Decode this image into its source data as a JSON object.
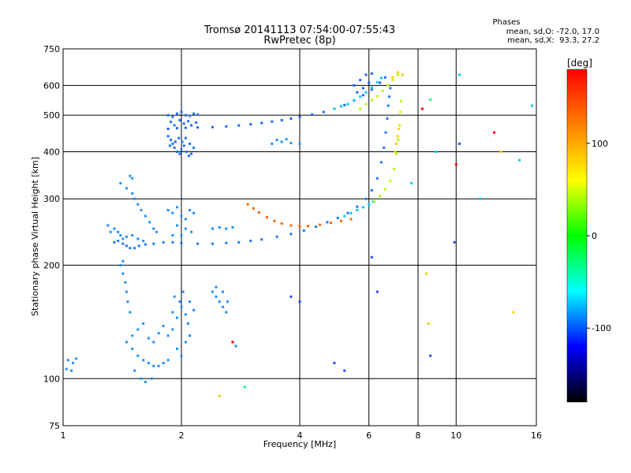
{
  "chart_data": {
    "type": "scatter",
    "title": "Tromsø 20141113 07:54:00-07:55:43",
    "subtitle": "RwPretec (8p)",
    "xlabel": "Frequency [MHz]",
    "ylabel": "Stationary phase Virtual Height [km]",
    "x_scale": "log",
    "y_scale": "log",
    "xlim": [
      1,
      16
    ],
    "ylim": [
      75,
      750
    ],
    "x_ticks": [
      1,
      2,
      4,
      6,
      8,
      10,
      16
    ],
    "y_ticks": [
      75,
      100,
      200,
      300,
      400,
      500,
      600,
      750
    ],
    "grid": true,
    "phases_box": {
      "title": "Phases",
      "line_o": "mean, sd,O: -72.0, 17.0",
      "line_x": "mean, sd,X:  93.3, 27.2"
    },
    "colorbar": {
      "unit": "[deg]",
      "range": [
        -180,
        180
      ],
      "ticks": [
        100,
        0,
        -100
      ],
      "colors": [
        "#ff0000",
        "#ff8000",
        "#ffff00",
        "#00ff00",
        "#00ffff",
        "#0000ff",
        "#000000"
      ]
    },
    "series": [
      {
        "color": "#1e90ff",
        "points": [
          [
            1.03,
            112
          ],
          [
            1.06,
            110
          ],
          [
            1.08,
            113
          ],
          [
            1.02,
            106
          ],
          [
            1.05,
            105
          ]
        ]
      },
      {
        "color": "#1e78ff",
        "points": [
          [
            1.35,
            230
          ],
          [
            1.38,
            232
          ],
          [
            1.42,
            228
          ],
          [
            1.45,
            225
          ],
          [
            1.48,
            222
          ],
          [
            1.52,
            222
          ],
          [
            1.56,
            225
          ],
          [
            1.62,
            227
          ],
          [
            1.7,
            228
          ],
          [
            1.8,
            230
          ],
          [
            1.9,
            230
          ],
          [
            2.0,
            229
          ],
          [
            2.2,
            228
          ],
          [
            2.4,
            228
          ],
          [
            2.6,
            229
          ],
          [
            2.8,
            230
          ],
          [
            3.0,
            232
          ],
          [
            3.2,
            234
          ],
          [
            3.5,
            238
          ],
          [
            3.8,
            242
          ],
          [
            4.1,
            247
          ],
          [
            4.4,
            253
          ],
          [
            4.7,
            260
          ],
          [
            5.0,
            267
          ],
          [
            5.3,
            275
          ],
          [
            5.6,
            286
          ],
          [
            5.9,
            300
          ],
          [
            6.1,
            316
          ],
          [
            6.3,
            340
          ],
          [
            6.45,
            375
          ],
          [
            6.55,
            410
          ],
          [
            6.62,
            450
          ],
          [
            6.68,
            490
          ],
          [
            6.72,
            530
          ],
          [
            6.76,
            560
          ],
          [
            6.8,
            590
          ]
        ]
      },
      {
        "color": "#1e64ff",
        "points": [
          [
            1.85,
            460
          ],
          [
            1.95,
            462
          ],
          [
            2.05,
            463
          ],
          [
            2.2,
            464
          ],
          [
            2.4,
            465
          ],
          [
            2.6,
            467
          ],
          [
            2.8,
            470
          ],
          [
            3.0,
            473
          ],
          [
            3.2,
            477
          ],
          [
            3.4,
            481
          ],
          [
            3.6,
            485
          ],
          [
            3.8,
            490
          ],
          [
            4.0,
            495
          ],
          [
            4.3,
            502
          ],
          [
            4.6,
            510
          ],
          [
            4.9,
            520
          ],
          [
            5.2,
            532
          ],
          [
            5.5,
            547
          ],
          [
            5.8,
            565
          ],
          [
            6.1,
            585
          ],
          [
            6.4,
            610
          ],
          [
            6.6,
            630
          ]
        ]
      },
      {
        "color": "#1e70ff",
        "points": [
          [
            1.85,
            500
          ],
          [
            1.9,
            495
          ],
          [
            1.95,
            505
          ],
          [
            2.0,
            510
          ],
          [
            2.05,
            500
          ],
          [
            2.1,
            498
          ],
          [
            2.15,
            505
          ],
          [
            2.2,
            502
          ],
          [
            1.88,
            480
          ],
          [
            1.92,
            470
          ],
          [
            1.98,
            485
          ],
          [
            2.03,
            475
          ],
          [
            2.08,
            482
          ],
          [
            2.12,
            470
          ],
          [
            2.18,
            478
          ]
        ]
      },
      {
        "color": "#1e70ff",
        "points": [
          [
            1.85,
            440
          ],
          [
            1.88,
            430
          ],
          [
            1.9,
            420
          ],
          [
            1.92,
            410
          ],
          [
            1.95,
            400
          ],
          [
            1.98,
            395
          ],
          [
            2.0,
            405
          ],
          [
            2.03,
            415
          ],
          [
            2.06,
            400
          ],
          [
            2.09,
            390
          ],
          [
            2.12,
            395
          ],
          [
            2.15,
            410
          ],
          [
            1.87,
            415
          ],
          [
            1.93,
            425
          ],
          [
            1.97,
            435
          ],
          [
            2.01,
            425
          ],
          [
            2.05,
            435
          ],
          [
            2.1,
            420
          ]
        ]
      },
      {
        "color": "#00c8ff",
        "points": [
          [
            4.9,
            520
          ],
          [
            5.1,
            528
          ],
          [
            5.3,
            535
          ],
          [
            5.5,
            548
          ],
          [
            5.7,
            560
          ],
          [
            5.9,
            575
          ],
          [
            6.1,
            592
          ],
          [
            6.3,
            612
          ],
          [
            6.45,
            628
          ]
        ]
      },
      {
        "color": "#00c8ff",
        "points": [
          [
            5.2,
            270
          ],
          [
            5.4,
            275
          ],
          [
            5.6,
            280
          ],
          [
            5.8,
            285
          ],
          [
            6.0,
            290
          ],
          [
            6.15,
            295
          ]
        ]
      },
      {
        "color": "#b4ff00",
        "points": [
          [
            5.7,
            520
          ],
          [
            5.9,
            535
          ],
          [
            6.1,
            548
          ],
          [
            6.3,
            562
          ],
          [
            6.5,
            580
          ],
          [
            6.7,
            600
          ],
          [
            6.9,
            620
          ],
          [
            7.1,
            640
          ]
        ]
      },
      {
        "color": "#b4ff00",
        "points": [
          [
            6.2,
            295
          ],
          [
            6.4,
            305
          ],
          [
            6.6,
            318
          ],
          [
            6.8,
            335
          ],
          [
            6.95,
            360
          ],
          [
            7.05,
            395
          ],
          [
            7.12,
            430
          ],
          [
            7.18,
            470
          ],
          [
            7.22,
            510
          ],
          [
            7.24,
            545
          ]
        ]
      },
      {
        "color": "#ffcc00",
        "points": [
          [
            7.0,
            400
          ],
          [
            7.05,
            420
          ],
          [
            7.1,
            440
          ],
          [
            7.15,
            460
          ],
          [
            6.9,
            630
          ],
          [
            7.1,
            650
          ],
          [
            7.3,
            640
          ]
        ]
      },
      {
        "color": "#ff6400",
        "points": [
          [
            2.95,
            290
          ],
          [
            3.05,
            283
          ],
          [
            3.15,
            276
          ],
          [
            3.3,
            268
          ],
          [
            3.45,
            262
          ],
          [
            3.6,
            258
          ],
          [
            3.8,
            255
          ],
          [
            4.0,
            254
          ],
          [
            4.2,
            254
          ],
          [
            4.5,
            256
          ],
          [
            4.8,
            259
          ],
          [
            5.1,
            262
          ],
          [
            5.4,
            265
          ]
        ]
      },
      {
        "color": "#1e64ff",
        "points": [
          [
            5.5,
            600
          ],
          [
            5.7,
            620
          ],
          [
            5.9,
            640
          ],
          [
            6.1,
            645
          ],
          [
            5.6,
            575
          ],
          [
            5.8,
            590
          ],
          [
            6.0,
            610
          ]
        ]
      },
      {
        "color": "#1e90ff",
        "points": [
          [
            3.4,
            420
          ],
          [
            3.6,
            425
          ],
          [
            3.8,
            422
          ],
          [
            4.0,
            420
          ],
          [
            3.5,
            430
          ],
          [
            3.7,
            432
          ]
        ]
      },
      {
        "color": "#1e90ff",
        "points": [
          [
            1.4,
            330
          ],
          [
            1.45,
            320
          ],
          [
            1.5,
            310
          ],
          [
            1.52,
            300
          ],
          [
            1.55,
            290
          ],
          [
            1.58,
            280
          ],
          [
            1.62,
            270
          ],
          [
            1.66,
            260
          ],
          [
            1.7,
            250
          ],
          [
            1.73,
            245
          ],
          [
            1.5,
            340
          ],
          [
            1.48,
            345
          ]
        ]
      },
      {
        "color": "#1e90ff",
        "points": [
          [
            1.4,
            200
          ],
          [
            1.42,
            190
          ],
          [
            1.44,
            180
          ],
          [
            1.45,
            170
          ],
          [
            1.46,
            160
          ],
          [
            1.48,
            150
          ],
          [
            1.42,
            205
          ]
        ]
      },
      {
        "color": "#1e90ff",
        "points": [
          [
            1.5,
            120
          ],
          [
            1.55,
            115
          ],
          [
            1.6,
            112
          ],
          [
            1.65,
            110
          ],
          [
            1.7,
            108
          ],
          [
            1.75,
            108
          ],
          [
            1.8,
            110
          ],
          [
            1.85,
            112
          ],
          [
            1.5,
            130
          ],
          [
            1.55,
            135
          ],
          [
            1.6,
            140
          ],
          [
            1.65,
            128
          ],
          [
            1.7,
            125
          ],
          [
            1.75,
            132
          ],
          [
            1.8,
            138
          ],
          [
            1.85,
            130
          ],
          [
            1.9,
            135
          ],
          [
            1.95,
            120
          ],
          [
            2.0,
            115
          ],
          [
            2.05,
            125
          ],
          [
            2.1,
            130
          ],
          [
            1.45,
            125
          ],
          [
            1.52,
            105
          ],
          [
            1.58,
            100
          ],
          [
            1.62,
            98
          ],
          [
            1.68,
            100
          ]
        ]
      },
      {
        "color": "#1e90ff",
        "points": [
          [
            1.9,
            150
          ],
          [
            1.95,
            145
          ],
          [
            2.0,
            155
          ],
          [
            2.05,
            148
          ],
          [
            2.1,
            160
          ],
          [
            2.15,
            152
          ],
          [
            1.92,
            165
          ],
          [
            1.98,
            160
          ],
          [
            2.02,
            170
          ],
          [
            2.08,
            140
          ]
        ]
      },
      {
        "color": "#1e90ff",
        "points": [
          [
            2.4,
            170
          ],
          [
            2.45,
            165
          ],
          [
            2.5,
            160
          ],
          [
            2.55,
            155
          ],
          [
            2.6,
            150
          ],
          [
            2.45,
            175
          ],
          [
            2.55,
            170
          ],
          [
            2.62,
            160
          ],
          [
            2.7,
            125
          ],
          [
            2.75,
            122
          ]
        ]
      },
      {
        "color": "#1e90ff",
        "points": [
          [
            1.85,
            280
          ],
          [
            1.9,
            275
          ],
          [
            1.95,
            285
          ],
          [
            2.0,
            270
          ],
          [
            2.05,
            265
          ],
          [
            2.1,
            280
          ],
          [
            2.15,
            275
          ],
          [
            1.95,
            255
          ],
          [
            2.05,
            250
          ],
          [
            2.12,
            245
          ],
          [
            2.4,
            250
          ],
          [
            2.5,
            252
          ],
          [
            2.6,
            250
          ],
          [
            2.7,
            252
          ],
          [
            1.9,
            240
          ],
          [
            2.0,
            240
          ]
        ]
      },
      {
        "color": "#1e90ff",
        "points": [
          [
            1.3,
            255
          ],
          [
            1.35,
            250
          ],
          [
            1.38,
            245
          ],
          [
            1.32,
            245
          ],
          [
            1.4,
            240
          ],
          [
            1.42,
            235
          ],
          [
            1.45,
            238
          ],
          [
            1.5,
            240
          ],
          [
            1.55,
            235
          ],
          [
            1.6,
            232
          ]
        ]
      },
      {
        "color": "#1e50ff",
        "points": [
          [
            4.9,
            110
          ],
          [
            5.2,
            105
          ],
          [
            4.0,
            160
          ],
          [
            3.8,
            165
          ]
        ]
      },
      {
        "color": "#ff0000",
        "points": [
          [
            2.7,
            125
          ],
          [
            12.5,
            450
          ],
          [
            8.2,
            520
          ],
          [
            10.0,
            370
          ]
        ]
      },
      {
        "color": "#ffcc00",
        "points": [
          [
            2.5,
            90
          ],
          [
            8.4,
            190
          ],
          [
            13.0,
            400
          ],
          [
            14.0,
            150
          ],
          [
            8.5,
            140
          ]
        ]
      },
      {
        "color": "#00c8ff",
        "points": [
          [
            10.2,
            640
          ],
          [
            15.6,
            530
          ],
          [
            14.5,
            380
          ],
          [
            11.5,
            300
          ],
          [
            8.9,
            400
          ],
          [
            7.7,
            330
          ]
        ]
      },
      {
        "color": "#1e50ff",
        "points": [
          [
            9.9,
            230
          ],
          [
            8.6,
            115
          ],
          [
            10.2,
            420
          ],
          [
            6.1,
            210
          ],
          [
            6.3,
            170
          ]
        ]
      },
      {
        "color": "#00ff80",
        "points": [
          [
            2.9,
            95
          ],
          [
            8.6,
            550
          ]
        ]
      }
    ]
  }
}
